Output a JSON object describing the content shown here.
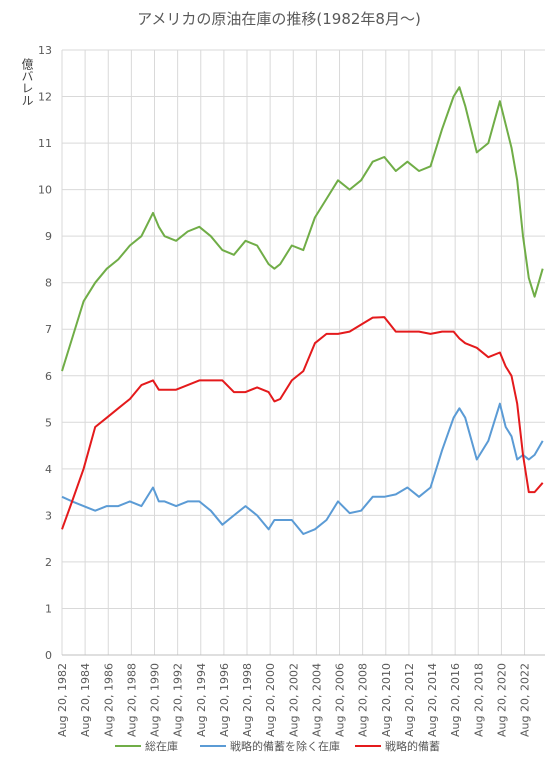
{
  "chart_data": {
    "type": "line",
    "title": "アメリカの原油在庫の推移(1982年8月～)",
    "y_label": "億バレル",
    "x": [
      1982.63,
      1983.5,
      1984.5,
      1985.5,
      1986.5,
      1987.5,
      1988.5,
      1989.5,
      1990.5,
      1991,
      1991.5,
      1992.5,
      1993.5,
      1994.5,
      1995.5,
      1996.5,
      1997.5,
      1998.5,
      1999.5,
      2000.5,
      2001,
      2001.5,
      2002.5,
      2003.5,
      2004.5,
      2005.5,
      2006.5,
      2007.5,
      2008.5,
      2009.5,
      2010.5,
      2011.5,
      2012.5,
      2013.5,
      2014.5,
      2015.5,
      2016.5,
      2017,
      2017.5,
      2018.5,
      2019.5,
      2020.5,
      2021,
      2021.5,
      2022,
      2022.5,
      2023,
      2023.5,
      2024.2
    ],
    "series": [
      {
        "name": "総在庫",
        "color": "#70ad47",
        "values": [
          6.1,
          6.8,
          7.6,
          8.0,
          8.3,
          8.5,
          8.8,
          9.0,
          9.5,
          9.2,
          9.0,
          8.9,
          9.1,
          9.2,
          9.0,
          8.7,
          8.6,
          8.9,
          8.8,
          8.4,
          8.3,
          8.4,
          8.8,
          8.7,
          9.4,
          9.8,
          10.2,
          10.0,
          10.2,
          10.6,
          10.7,
          10.4,
          10.6,
          10.4,
          10.5,
          11.3,
          12.0,
          12.2,
          11.8,
          10.8,
          11.0,
          11.9,
          11.4,
          10.9,
          10.2,
          9.0,
          8.1,
          7.7,
          8.3
        ]
      },
      {
        "name": "戦略的備蓄を除く在庫",
        "color": "#5b9bd5",
        "values": [
          3.4,
          3.3,
          3.2,
          3.1,
          3.2,
          3.2,
          3.3,
          3.2,
          3.6,
          3.3,
          3.3,
          3.2,
          3.3,
          3.3,
          3.1,
          2.8,
          3.0,
          3.2,
          3.0,
          2.7,
          2.9,
          2.9,
          2.9,
          2.6,
          2.7,
          2.9,
          3.3,
          3.05,
          3.1,
          3.4,
          3.4,
          3.45,
          3.6,
          3.4,
          3.6,
          4.4,
          5.1,
          5.3,
          5.1,
          4.2,
          4.6,
          5.4,
          4.9,
          4.7,
          4.2,
          4.3,
          4.2,
          4.3,
          4.6
        ]
      },
      {
        "name": "戦略的備蓄",
        "color": "#e41a1c",
        "values": [
          2.7,
          3.3,
          4.0,
          4.9,
          5.1,
          5.3,
          5.5,
          5.8,
          5.9,
          5.7,
          5.7,
          5.7,
          5.8,
          5.9,
          5.9,
          5.9,
          5.65,
          5.65,
          5.75,
          5.65,
          5.45,
          5.5,
          5.9,
          6.1,
          6.7,
          6.9,
          6.9,
          6.95,
          7.1,
          7.25,
          7.26,
          6.95,
          6.95,
          6.95,
          6.9,
          6.95,
          6.95,
          6.8,
          6.7,
          6.6,
          6.4,
          6.5,
          6.2,
          6.0,
          5.4,
          4.3,
          3.5,
          3.5,
          3.7
        ]
      }
    ],
    "xlim": [
      1982.63,
      2024.4
    ],
    "xticks": [
      {
        "value": 1982.63,
        "label": "Aug 20, 1982"
      },
      {
        "value": 1984.63,
        "label": "Aug 20, 1984"
      },
      {
        "value": 1986.63,
        "label": "Aug 20, 1986"
      },
      {
        "value": 1988.63,
        "label": "Aug 20, 1988"
      },
      {
        "value": 1990.63,
        "label": "Aug 20, 1990"
      },
      {
        "value": 1992.63,
        "label": "Aug 20, 1992"
      },
      {
        "value": 1994.63,
        "label": "Aug 20, 1994"
      },
      {
        "value": 1996.63,
        "label": "Aug 20, 1996"
      },
      {
        "value": 1998.63,
        "label": "Aug 20, 1998"
      },
      {
        "value": 2000.63,
        "label": "Aug 20, 2000"
      },
      {
        "value": 2002.63,
        "label": "Aug 20, 2002"
      },
      {
        "value": 2004.63,
        "label": "Aug 20, 2004"
      },
      {
        "value": 2006.63,
        "label": "Aug 20, 2006"
      },
      {
        "value": 2008.63,
        "label": "Aug 20, 2008"
      },
      {
        "value": 2010.63,
        "label": "Aug 20, 2010"
      },
      {
        "value": 2012.63,
        "label": "Aug 20, 2012"
      },
      {
        "value": 2014.63,
        "label": "Aug 20, 2014"
      },
      {
        "value": 2016.63,
        "label": "Aug 20, 2016"
      },
      {
        "value": 2018.63,
        "label": "Aug 20, 2018"
      },
      {
        "value": 2020.63,
        "label": "Aug 20, 2020"
      },
      {
        "value": 2022.63,
        "label": "Aug 20, 2022"
      }
    ],
    "ylim": [
      0,
      13
    ],
    "yticks": [
      0,
      1,
      2,
      3,
      4,
      5,
      6,
      7,
      8,
      9,
      10,
      11,
      12,
      13
    ],
    "grid": true
  }
}
